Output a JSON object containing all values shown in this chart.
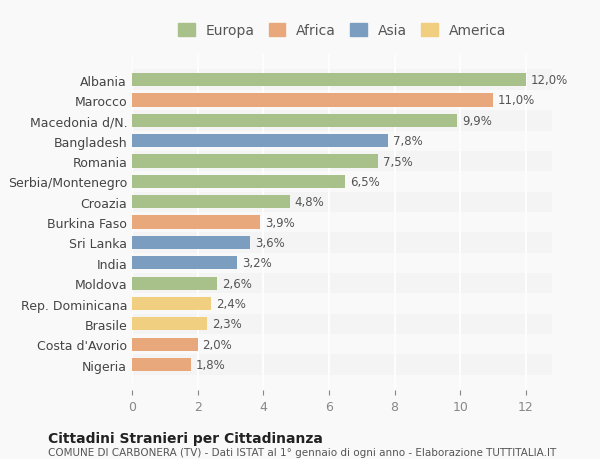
{
  "countries": [
    "Nigeria",
    "Costa d'Avorio",
    "Brasile",
    "Rep. Dominicana",
    "Moldova",
    "India",
    "Sri Lanka",
    "Burkina Faso",
    "Croazia",
    "Serbia/Montenegro",
    "Romania",
    "Bangladesh",
    "Macedonia d/N.",
    "Marocco",
    "Albania"
  ],
  "values": [
    1.8,
    2.0,
    2.3,
    2.4,
    2.6,
    3.2,
    3.6,
    3.9,
    4.8,
    6.5,
    7.5,
    7.8,
    9.9,
    11.0,
    12.0
  ],
  "continents": [
    "Africa",
    "Africa",
    "America",
    "America",
    "Europa",
    "Asia",
    "Asia",
    "Africa",
    "Europa",
    "Europa",
    "Europa",
    "Asia",
    "Europa",
    "Africa",
    "Europa"
  ],
  "labels": [
    "1,8%",
    "2,0%",
    "2,3%",
    "2,4%",
    "2,6%",
    "3,2%",
    "3,6%",
    "3,9%",
    "4,8%",
    "6,5%",
    "7,5%",
    "7,8%",
    "9,9%",
    "11,0%",
    "12,0%"
  ],
  "colors": {
    "Europa": "#a8c08a",
    "Africa": "#e8a87c",
    "Asia": "#7b9ec0",
    "America": "#f0d080"
  },
  "legend_order": [
    "Europa",
    "Africa",
    "Asia",
    "America"
  ],
  "title": "Cittadini Stranieri per Cittadinanza",
  "subtitle": "COMUNE DI CARBONERA (TV) - Dati ISTAT al 1° gennaio di ogni anno - Elaborazione TUTTITALIA.IT",
  "xlim": [
    0,
    12.8
  ],
  "xticks": [
    0,
    2,
    4,
    6,
    8,
    10,
    12
  ],
  "background_color": "#f9f9f9",
  "bar_background": "#f0f0f0"
}
